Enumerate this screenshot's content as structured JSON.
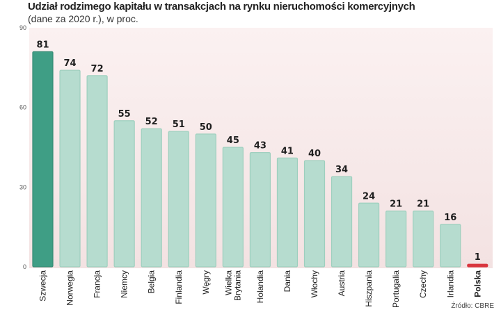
{
  "chart_data": {
    "type": "bar",
    "title": "Udział rodzimego kapitału w transakcjach na rynku nieruchomości komercyjnych",
    "subtitle": "(dane za 2020 r.), w proc.",
    "source": "Źródło: CBRE",
    "ylim": [
      0,
      90
    ],
    "yticks": [
      0,
      30,
      60,
      90
    ],
    "grid": false,
    "categories": [
      [
        "Szwecja"
      ],
      [
        "Norwegia"
      ],
      [
        "Francja"
      ],
      [
        "Niemcy"
      ],
      [
        "Belgia"
      ],
      [
        "Finlandia"
      ],
      [
        "Węgry"
      ],
      [
        "Wielka",
        "Brytania"
      ],
      [
        "Holandia"
      ],
      [
        "Dania"
      ],
      [
        "Włochy"
      ],
      [
        "Austria"
      ],
      [
        "Hiszpania"
      ],
      [
        "Portugalia"
      ],
      [
        "Czechy"
      ],
      [
        "Irlandia"
      ],
      [
        "Polska"
      ]
    ],
    "values": [
      81,
      74,
      72,
      55,
      52,
      51,
      50,
      45,
      43,
      41,
      40,
      34,
      24,
      21,
      21,
      16,
      1
    ],
    "colors": {
      "highlight": "#3f9e85",
      "bar": "#b6dccf",
      "bar_border": "#9dcfbe",
      "polska": "#d9363e",
      "background_top": "#fbf1f1",
      "background_bottom": "#f3e2e2"
    }
  }
}
